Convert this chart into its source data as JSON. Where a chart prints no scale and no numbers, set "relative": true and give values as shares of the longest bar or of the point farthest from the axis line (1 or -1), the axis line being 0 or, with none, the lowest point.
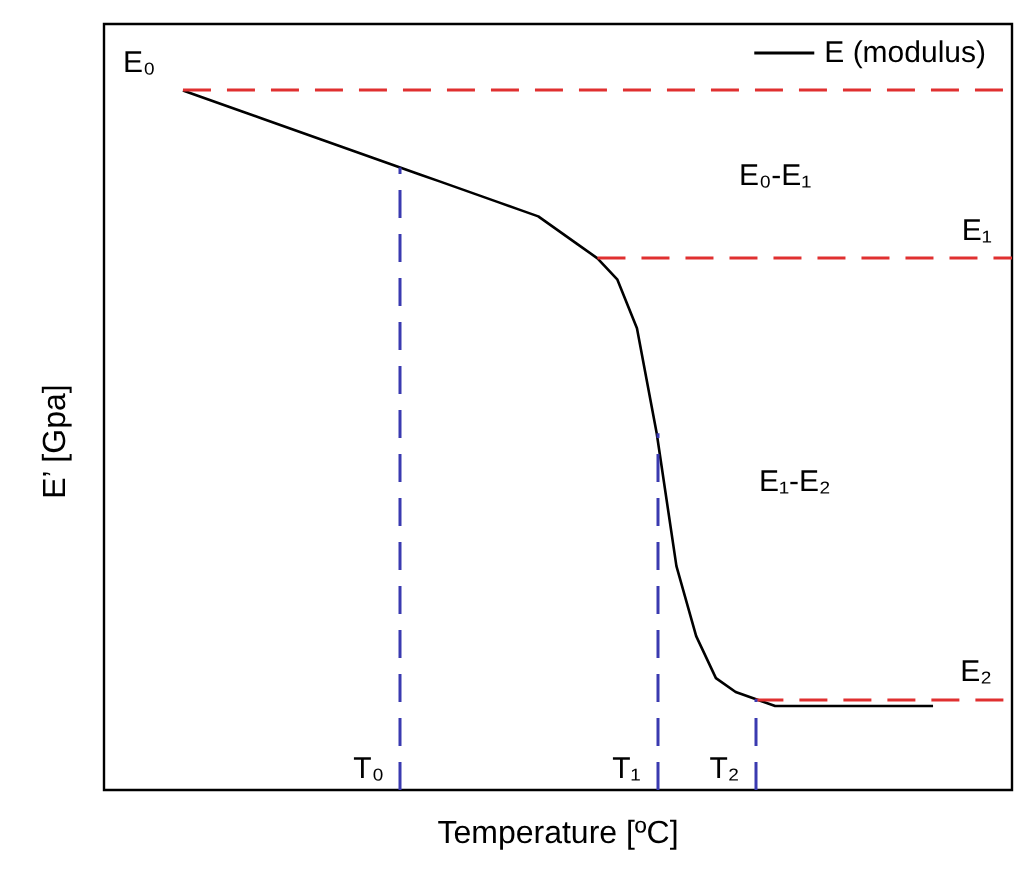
{
  "chart_data": {
    "type": "line",
    "relative": true,
    "xlabel": "Temperature [ºC]",
    "ylabel": "E’ [Gpa]",
    "categories": [
      null,
      null,
      null,
      null,
      null,
      null,
      null,
      null,
      null,
      null,
      null,
      null,
      null,
      null,
      null,
      null,
      null,
      null,
      null,
      null,
      null,
      null,
      null,
      null,
      null,
      null,
      null,
      null,
      null,
      null,
      null,
      null,
      null,
      null,
      null,
      null,
      null,
      null,
      null,
      null,
      null,
      null,
      null,
      null,
      null,
      null,
      null
    ],
    "series": [
      {
        "name": "E (modulus)",
        "color": "#000000",
        "values": [
          null,
          null,
          null,
          null,
          1.0,
          0.99,
          0.98,
          0.97,
          0.96,
          0.95,
          0.94,
          0.93,
          0.92,
          0.91,
          0.9,
          0.89,
          0.88,
          0.87,
          0.86,
          0.85,
          0.84,
          0.83,
          0.82,
          0.8,
          0.78,
          0.76,
          0.73,
          0.66,
          0.51,
          0.32,
          0.22,
          0.16,
          0.14,
          0.13,
          0.12,
          0.12,
          0.12,
          0.12,
          0.12,
          0.12,
          0.12,
          0.12,
          0.12,
          null,
          null,
          null,
          null
        ]
      }
    ],
    "ref_lines": [
      {
        "axis": "y",
        "value": 1.0,
        "label": "E₀",
        "color": "#e03030",
        "line_style": "dashed"
      },
      {
        "axis": "y",
        "value": 0.76,
        "label": "E₁",
        "color": "#e03030",
        "line_style": "dashed"
      },
      {
        "axis": "y",
        "value": 0.13,
        "label": "E₂",
        "color": "#e03030",
        "line_style": "dashed"
      }
    ],
    "annotations": [
      "E₀-E₁",
      "E₁-E₂",
      "T₀",
      "T₁",
      "T₂"
    ],
    "legend": "top right",
    "grid": false,
    "marker": "none",
    "line_style": "solid"
  }
}
